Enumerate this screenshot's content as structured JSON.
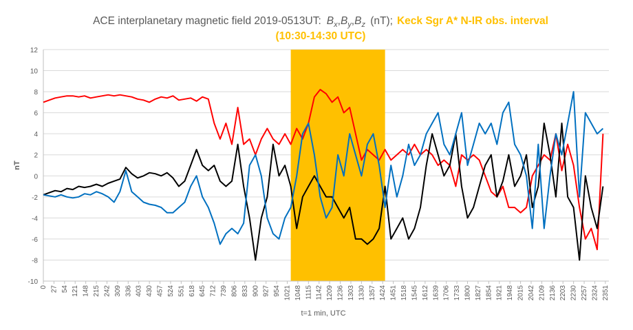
{
  "chart_data": {
    "type": "line",
    "title": "ACE interplanetary magnetic field 2019-0513UT:",
    "title_symbols": [
      {
        "base": "B",
        "sub": "x",
        "sep": ","
      },
      {
        "base": "B",
        "sub": "y",
        "sep": ","
      },
      {
        "base": "B",
        "sub": "z"
      }
    ],
    "title_unit": "(nT);",
    "highlight_label": [
      "Keck Sgr A* N-IR obs. interval",
      "(10:30-14:30 UTC)"
    ],
    "highlight": [
      630,
      870
    ],
    "highlight_color": "#ffc000",
    "x_label": "t=1 min, UTC",
    "y_label": "nT",
    "xlim": [
      0,
      1440
    ],
    "ylim": [
      -10,
      12
    ],
    "yticks": [
      -10,
      -8,
      -6,
      -4,
      -2,
      0,
      2,
      4,
      6,
      8,
      10,
      12
    ],
    "grid": true,
    "xticks": [
      0,
      27,
      54,
      {
        "value": 81,
        "label": "121"
      },
      {
        "value": 108,
        "label": "148"
      },
      {
        "value": 135,
        "label": "215"
      },
      {
        "value": 162,
        "label": "242"
      },
      {
        "value": 189,
        "label": "309"
      },
      {
        "value": 216,
        "label": "336"
      },
      {
        "value": 243,
        "label": "403"
      },
      {
        "value": 270,
        "label": "430"
      },
      {
        "value": 297,
        "label": "457"
      },
      {
        "value": 324,
        "label": "524"
      },
      {
        "value": 351,
        "label": "551"
      },
      {
        "value": 378,
        "label": "618"
      },
      {
        "value": 405,
        "label": "645"
      },
      {
        "value": 432,
        "label": "712"
      },
      {
        "value": 459,
        "label": "739"
      },
      {
        "value": 486,
        "label": "806"
      },
      {
        "value": 513,
        "label": "833"
      },
      {
        "value": 540,
        "label": "900"
      },
      {
        "value": 567,
        "label": "927"
      },
      {
        "value": 594,
        "label": "954"
      },
      {
        "value": 621,
        "label": "1021"
      },
      {
        "value": 648,
        "label": "1048"
      },
      {
        "value": 675,
        "label": "1115"
      },
      {
        "value": 702,
        "label": "1142"
      },
      {
        "value": 729,
        "label": "1209"
      },
      {
        "value": 756,
        "label": "1236"
      },
      {
        "value": 783,
        "label": "1303"
      },
      {
        "value": 810,
        "label": "1330"
      },
      {
        "value": 837,
        "label": "1357"
      },
      {
        "value": 864,
        "label": "1424"
      },
      {
        "value": 891,
        "label": "1451"
      },
      {
        "value": 918,
        "label": "1518"
      },
      {
        "value": 945,
        "label": "1545"
      },
      {
        "value": 972,
        "label": "1612"
      },
      {
        "value": 999,
        "label": "1639"
      },
      {
        "value": 1026,
        "label": "1706"
      },
      {
        "value": 1053,
        "label": "1733"
      },
      {
        "value": 1080,
        "label": "1800"
      },
      {
        "value": 1107,
        "label": "1827"
      },
      {
        "value": 1134,
        "label": "1854"
      },
      {
        "value": 1161,
        "label": "1921"
      },
      {
        "value": 1188,
        "label": "1948"
      },
      {
        "value": 1215,
        "label": "2015"
      },
      {
        "value": 1242,
        "label": "2042"
      },
      {
        "value": 1269,
        "label": "2109"
      },
      {
        "value": 1296,
        "label": "2136"
      },
      {
        "value": 1323,
        "label": "2203"
      },
      {
        "value": 1350,
        "label": "2230"
      },
      {
        "value": 1377,
        "label": "2257"
      },
      {
        "value": 1404,
        "label": "2324"
      },
      {
        "value": 1431,
        "label": "2351"
      }
    ],
    "x": [
      0,
      15,
      30,
      45,
      60,
      75,
      90,
      105,
      120,
      135,
      150,
      165,
      180,
      195,
      210,
      225,
      240,
      255,
      270,
      285,
      300,
      315,
      330,
      345,
      360,
      375,
      390,
      405,
      420,
      435,
      450,
      465,
      480,
      495,
      510,
      525,
      540,
      555,
      570,
      585,
      600,
      615,
      630,
      645,
      660,
      675,
      690,
      705,
      720,
      735,
      750,
      765,
      780,
      795,
      810,
      825,
      840,
      855,
      870,
      885,
      900,
      915,
      930,
      945,
      960,
      975,
      990,
      1005,
      1020,
      1035,
      1050,
      1065,
      1080,
      1095,
      1110,
      1125,
      1140,
      1155,
      1170,
      1185,
      1200,
      1215,
      1230,
      1245,
      1260,
      1275,
      1290,
      1305,
      1320,
      1335,
      1350,
      1365,
      1380,
      1395,
      1410,
      1425
    ],
    "series": [
      {
        "color": "#ff0000",
        "values": [
          7,
          7.2,
          7.4,
          7.5,
          7.6,
          7.6,
          7.5,
          7.6,
          7.4,
          7.5,
          7.6,
          7.7,
          7.6,
          7.7,
          7.6,
          7.5,
          7.3,
          7.2,
          7.0,
          7.3,
          7.5,
          7.4,
          7.6,
          7.2,
          7.3,
          7.4,
          7.1,
          7.5,
          7.3,
          5,
          3.5,
          5,
          3,
          6.5,
          3,
          3.5,
          2,
          3.5,
          4.5,
          3.5,
          3,
          4,
          3,
          4.5,
          3.5,
          5,
          7.5,
          8.2,
          7.8,
          7,
          7.5,
          6,
          6.5,
          4,
          1.5,
          2.5,
          2,
          1.5,
          2.5,
          1.5,
          2,
          2.5,
          2,
          3,
          2,
          2.5,
          2,
          1,
          1.5,
          1,
          -1,
          2,
          1.5,
          2,
          1.5,
          0,
          -1.5,
          -2,
          -1,
          -3,
          -3,
          -3.5,
          -3,
          0,
          1,
          2,
          1.5,
          4,
          0.5,
          3,
          1,
          -3,
          -6,
          -5,
          -7,
          4
        ]
      },
      {
        "color": "#000000",
        "values": [
          -1.8,
          -1.6,
          -1.4,
          -1.5,
          -1.2,
          -1.3,
          -1,
          -1.1,
          -1,
          -0.8,
          -1,
          -0.7,
          -0.5,
          -0.3,
          0.8,
          0.2,
          -0.2,
          0,
          0.3,
          0.2,
          0,
          0.3,
          -0.2,
          -1,
          -0.5,
          1,
          2.5,
          1,
          0.5,
          1,
          -0.5,
          -1,
          -0.5,
          3,
          -1,
          -4,
          -8,
          -4,
          -2,
          3,
          0,
          1,
          -1,
          -5,
          -2,
          -1,
          0,
          -1,
          -2,
          -2,
          -3,
          -4,
          -3,
          -6,
          -6,
          -6.5,
          -6,
          -5,
          -1,
          -6,
          -5,
          -4,
          -6,
          -5,
          -3,
          1,
          4,
          2,
          0,
          1,
          4,
          -1,
          -4,
          -3,
          -1,
          1,
          2,
          -2,
          -0.5,
          2,
          -1,
          0,
          2,
          -3,
          -1,
          5,
          2,
          -2,
          5,
          -2,
          -3,
          -8,
          0,
          -3,
          -5,
          -1
        ]
      },
      {
        "color": "#0070c0",
        "values": [
          -1.8,
          -1.9,
          -2,
          -1.8,
          -2,
          -2.1,
          -2,
          -1.7,
          -1.8,
          -1.5,
          -1.7,
          -2,
          -2.5,
          -1.5,
          0.5,
          -1.5,
          -2,
          -2.5,
          -2.7,
          -2.8,
          -3,
          -3.5,
          -3.5,
          -3,
          -2.5,
          -1,
          0,
          -2,
          -3,
          -4.5,
          -6.5,
          -5.5,
          -5,
          -5.5,
          -4.5,
          1,
          2,
          0,
          -4,
          -5.5,
          -6,
          -4,
          -3,
          0,
          4,
          5,
          2,
          -2,
          -4,
          -3,
          2,
          0,
          4,
          2,
          0,
          3,
          4,
          1,
          -3,
          1,
          -2,
          0,
          3,
          1,
          2,
          4,
          5,
          6,
          3,
          2,
          4,
          6,
          1,
          3,
          5,
          4,
          5,
          3,
          6,
          7,
          3,
          2,
          0,
          -5,
          3,
          -5,
          0,
          4,
          2,
          5,
          8,
          -2,
          6,
          5,
          4,
          4.5
        ]
      }
    ]
  }
}
